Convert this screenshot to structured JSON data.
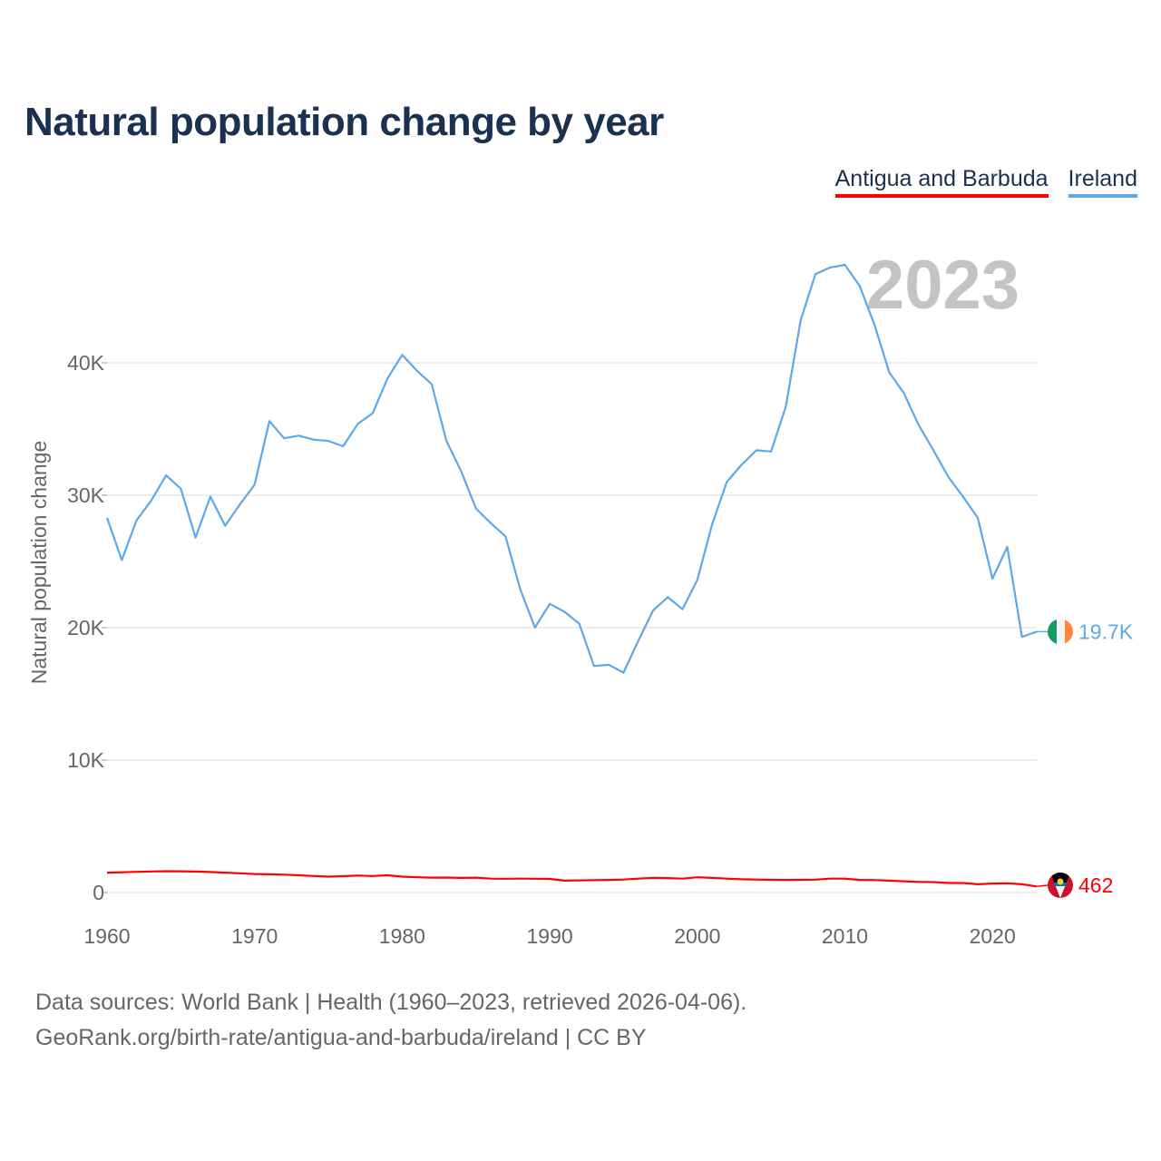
{
  "title": "Natural population change by year",
  "year_label": "2023",
  "footer": {
    "line1": "Data sources: World Bank | Health (1960–2023, retrieved 2026-04-06).",
    "line2": "GeoRank.org/birth-rate/antigua-and-barbuda/ireland | CC BY"
  },
  "chart_data": {
    "type": "line",
    "title": "Natural population change by year",
    "xlabel": "",
    "ylabel": "Natural population change",
    "xlim": [
      1960,
      2023
    ],
    "ylim": [
      0,
      50000
    ],
    "grid": true,
    "legend_position": "top-right",
    "x_ticks": [
      1960,
      1970,
      1980,
      1990,
      2000,
      2010,
      2020
    ],
    "x_tick_labels": [
      "1960",
      "1970",
      "1980",
      "1990",
      "2000",
      "2010",
      "2020"
    ],
    "y_ticks": [
      0,
      10000,
      20000,
      30000,
      40000
    ],
    "y_tick_labels": [
      "0",
      "10K",
      "20K",
      "30K",
      "40K"
    ],
    "series": [
      {
        "name": "Antigua and Barbuda",
        "color": "#ff0000",
        "end_label": "462",
        "flag": "antigua-and-barbuda-flag",
        "values": [
          1500,
          1530,
          1560,
          1590,
          1610,
          1600,
          1580,
          1550,
          1500,
          1450,
          1400,
          1380,
          1350,
          1300,
          1250,
          1200,
          1230,
          1280,
          1250,
          1300,
          1200,
          1150,
          1120,
          1130,
          1100,
          1120,
          1050,
          1040,
          1050,
          1040,
          1030,
          900,
          920,
          930,
          950,
          980,
          1050,
          1100,
          1090,
          1050,
          1150,
          1100,
          1050,
          1000,
          980,
          960,
          950,
          960,
          970,
          1050,
          1050,
          950,
          940,
          900,
          850,
          800,
          790,
          720,
          720,
          620,
          680,
          700,
          620,
          462
        ]
      },
      {
        "name": "Ireland",
        "color": "#5ea8ea",
        "end_label": "19.7K",
        "flag": "ireland-flag",
        "values": [
          28300,
          25100,
          28100,
          29600,
          31500,
          30500,
          26800,
          29900,
          27700,
          29300,
          30800,
          35600,
          34300,
          34500,
          34200,
          34100,
          33700,
          35400,
          36200,
          38800,
          40600,
          39400,
          38400,
          34100,
          31800,
          29000,
          27900,
          26900,
          22900,
          20000,
          21800,
          21200,
          20300,
          17100,
          17200,
          16600,
          19000,
          21300,
          22300,
          21400,
          23600,
          27800,
          31000,
          32300,
          33400,
          33300,
          36700,
          43200,
          46700,
          47200,
          47400,
          45800,
          42900,
          39300,
          37700,
          35300,
          33400,
          31400,
          29900,
          28300,
          23700,
          26100,
          19300,
          19700
        ]
      }
    ]
  }
}
